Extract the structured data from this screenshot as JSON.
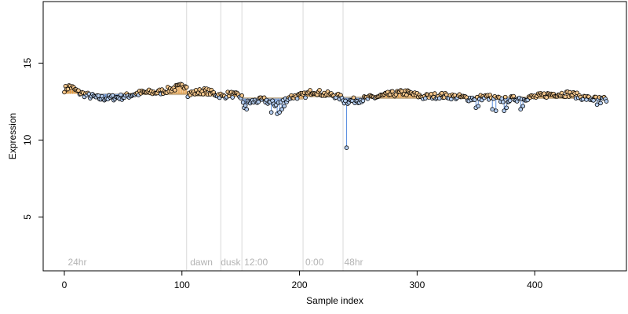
{
  "chart_data": {
    "type": "scatter",
    "title": "",
    "xlabel": "Sample index",
    "ylabel": "Expression",
    "xlim": [
      -18,
      478
    ],
    "ylim": [
      1.5,
      19
    ],
    "xticks": [
      0,
      100,
      200,
      300,
      400
    ],
    "yticks": [
      5,
      10,
      15
    ],
    "grid": false,
    "legend": "none",
    "colors": {
      "point_above": "#f5c78c",
      "point_below": "#b4cdf0",
      "point_outline": "#000000",
      "drop_above": "#e59a3d",
      "drop_below": "#5b8fe0",
      "baseline": "#c9b79a",
      "divider": "#d9d9d9",
      "group_label": "#b3b3b3"
    },
    "baseline": [
      {
        "x_start": 0,
        "x_end": 16,
        "y": 13.1
      },
      {
        "x_start": 16,
        "x_end": 48,
        "y": 12.95
      },
      {
        "x_start": 48,
        "x_end": 104,
        "y": 13.0
      },
      {
        "x_start": 104,
        "x_end": 133,
        "y": 12.9
      },
      {
        "x_start": 133,
        "x_end": 151,
        "y": 12.85
      },
      {
        "x_start": 151,
        "x_end": 203,
        "y": 12.7
      },
      {
        "x_start": 203,
        "x_end": 237,
        "y": 12.85
      },
      {
        "x_start": 237,
        "x_end": 461,
        "y": 12.75
      }
    ],
    "dividers": [
      104,
      133,
      151,
      203,
      237
    ],
    "group_labels": [
      {
        "x": 3,
        "label": "24hr"
      },
      {
        "x": 107,
        "label": "dawn"
      },
      {
        "x": 133,
        "label": "dusk"
      },
      {
        "x": 153,
        "label": "12:00"
      },
      {
        "x": 205,
        "label": "0:00"
      },
      {
        "x": 238,
        "label": "48hr"
      }
    ],
    "series": [
      {
        "segments": [
          {
            "x_start": 0,
            "x_end": 104,
            "base": 13.0,
            "knots": [
              [
                0,
                13.3
              ],
              [
                5,
                13.5
              ],
              [
                12,
                13.1
              ],
              [
                20,
                12.9
              ],
              [
                30,
                12.7
              ],
              [
                40,
                12.75
              ],
              [
                50,
                12.8
              ],
              [
                60,
                13.0
              ],
              [
                70,
                13.1
              ],
              [
                80,
                13.1
              ],
              [
                90,
                13.3
              ],
              [
                100,
                13.5
              ],
              [
                104,
                13.6
              ]
            ],
            "outliers": []
          },
          {
            "x_start": 105,
            "x_end": 133,
            "base": 12.9,
            "knots": [
              [
                105,
                13.0
              ],
              [
                112,
                13.1
              ],
              [
                120,
                13.2
              ],
              [
                128,
                13.0
              ],
              [
                133,
                12.9
              ]
            ],
            "outliers": []
          },
          {
            "x_start": 134,
            "x_end": 151,
            "base": 12.85,
            "knots": [
              [
                134,
                12.8
              ],
              [
                140,
                13.0
              ],
              [
                146,
                12.9
              ],
              [
                151,
                12.8
              ]
            ],
            "outliers": []
          },
          {
            "x_start": 152,
            "x_end": 203,
            "base": 12.7,
            "knots": [
              [
                152,
                12.3
              ],
              [
                160,
                12.5
              ],
              [
                170,
                12.6
              ],
              [
                180,
                12.3
              ],
              [
                186,
                12.5
              ],
              [
                192,
                12.8
              ],
              [
                203,
                12.9
              ]
            ],
            "outliers": [
              [
                153,
                12.1
              ],
              [
                155,
                12.0
              ],
              [
                176,
                11.8
              ],
              [
                181,
                11.7
              ],
              [
                183,
                11.8
              ],
              [
                185,
                12.0
              ],
              [
                187,
                12.2
              ]
            ]
          },
          {
            "x_start": 204,
            "x_end": 237,
            "base": 12.85,
            "knots": [
              [
                204,
                12.9
              ],
              [
                212,
                13.2
              ],
              [
                220,
                13.0
              ],
              [
                230,
                12.9
              ],
              [
                237,
                12.7
              ]
            ],
            "outliers": []
          },
          {
            "x_start": 238,
            "x_end": 461,
            "base": 12.75,
            "knots": [
              [
                238,
                12.5
              ],
              [
                250,
                12.6
              ],
              [
                265,
                12.8
              ],
              [
                280,
                13.0
              ],
              [
                290,
                13.1
              ],
              [
                305,
                12.8
              ],
              [
                320,
                12.9
              ],
              [
                335,
                12.8
              ],
              [
                345,
                12.7
              ],
              [
                360,
                12.8
              ],
              [
                372,
                12.6
              ],
              [
                385,
                12.7
              ],
              [
                400,
                12.8
              ],
              [
                415,
                13.0
              ],
              [
                430,
                13.0
              ],
              [
                445,
                12.7
              ],
              [
                461,
                12.6
              ]
            ],
            "outliers": [
              [
                240,
                9.5
              ],
              [
                350,
                12.1
              ],
              [
                352,
                12.2
              ],
              [
                364,
                12.0
              ],
              [
                367,
                11.9
              ],
              [
                374,
                11.9
              ],
              [
                376,
                12.1
              ],
              [
                388,
                12.0
              ],
              [
                390,
                12.2
              ],
              [
                453,
                12.3
              ],
              [
                456,
                12.4
              ]
            ]
          }
        ]
      }
    ]
  }
}
